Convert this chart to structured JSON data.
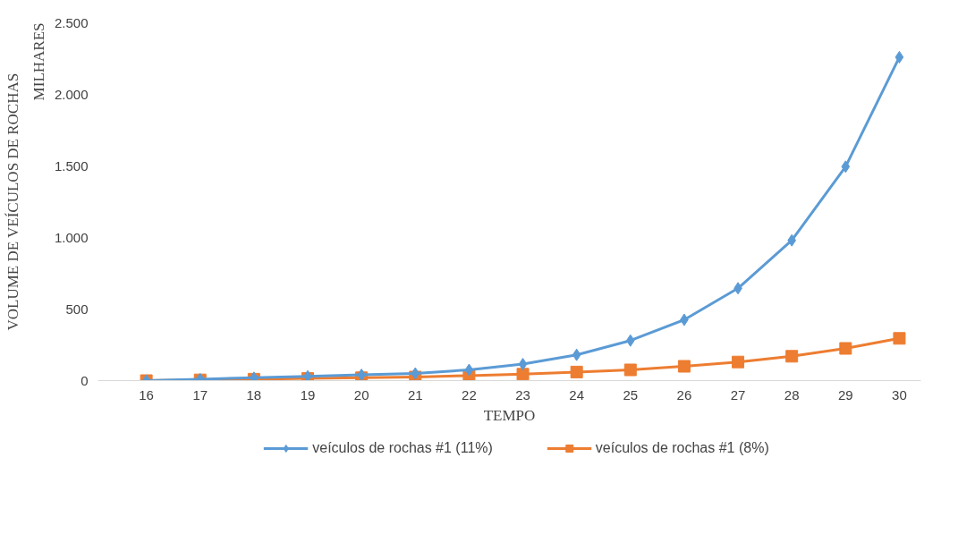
{
  "chart_data": {
    "type": "line",
    "xlabel": "TEMPO",
    "ylabel": "VOLUME DE VEÍCULOS DE ROCHAS",
    "annotations": [
      "MILHARES"
    ],
    "categories": [
      "16",
      "17",
      "18",
      "19",
      "20",
      "21",
      "22",
      "23",
      "24",
      "25",
      "26",
      "27",
      "28",
      "29",
      "30"
    ],
    "series": [
      {
        "name": "veículos de rochas #1 (11%)",
        "color": "#5b9bd5",
        "marker": "diamond",
        "values": [
          0,
          10,
          20,
          30,
          40,
          50,
          75,
          115,
          180,
          280,
          425,
          645,
          980,
          1495,
          2260
        ]
      },
      {
        "name": "veículos de rochas #1 (8%)",
        "color": "#ed7d31",
        "marker": "square",
        "values": [
          0,
          5,
          10,
          15,
          20,
          25,
          35,
          45,
          60,
          75,
          100,
          130,
          170,
          225,
          295
        ]
      }
    ],
    "ylim": [
      0,
      2500
    ],
    "yticks": [
      0,
      {
        "value": 500,
        "label": "500"
      },
      {
        "value": 1000,
        "label": "1.000"
      },
      {
        "value": 1500,
        "label": "1.500"
      },
      {
        "value": 2000,
        "label": "2.000"
      },
      {
        "value": 2500,
        "label": "2.500"
      }
    ],
    "grid": false,
    "legend": "bottom",
    "line_style": "solid"
  }
}
